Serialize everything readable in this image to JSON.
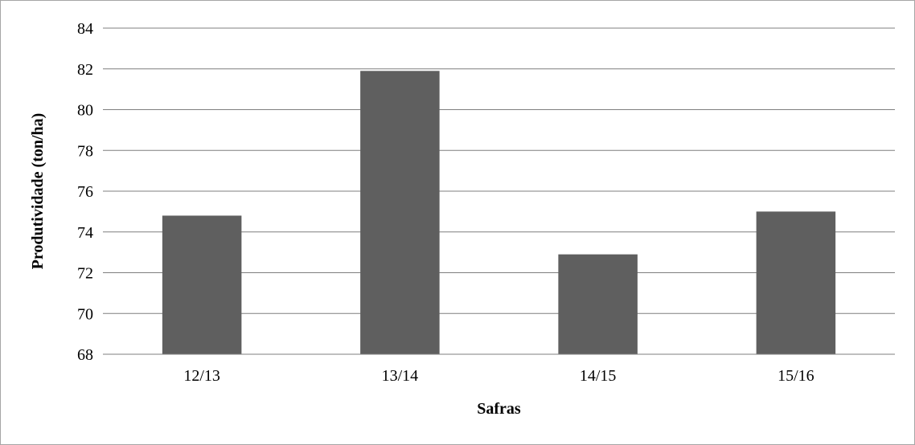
{
  "chart_data": {
    "type": "bar",
    "title": "",
    "xlabel": "Safras",
    "ylabel": "Produtividade (ton/ha)",
    "categories": [
      "12/13",
      "13/14",
      "14/15",
      "15/16"
    ],
    "values": [
      74.8,
      81.9,
      72.9,
      75.0
    ],
    "ylim": [
      68,
      84
    ],
    "yticks": [
      68,
      70,
      72,
      74,
      76,
      78,
      80,
      82,
      84
    ],
    "grid": true,
    "legend": "none",
    "bar_color": "#5f5f5f",
    "grid_color": "#7f7f7f"
  }
}
